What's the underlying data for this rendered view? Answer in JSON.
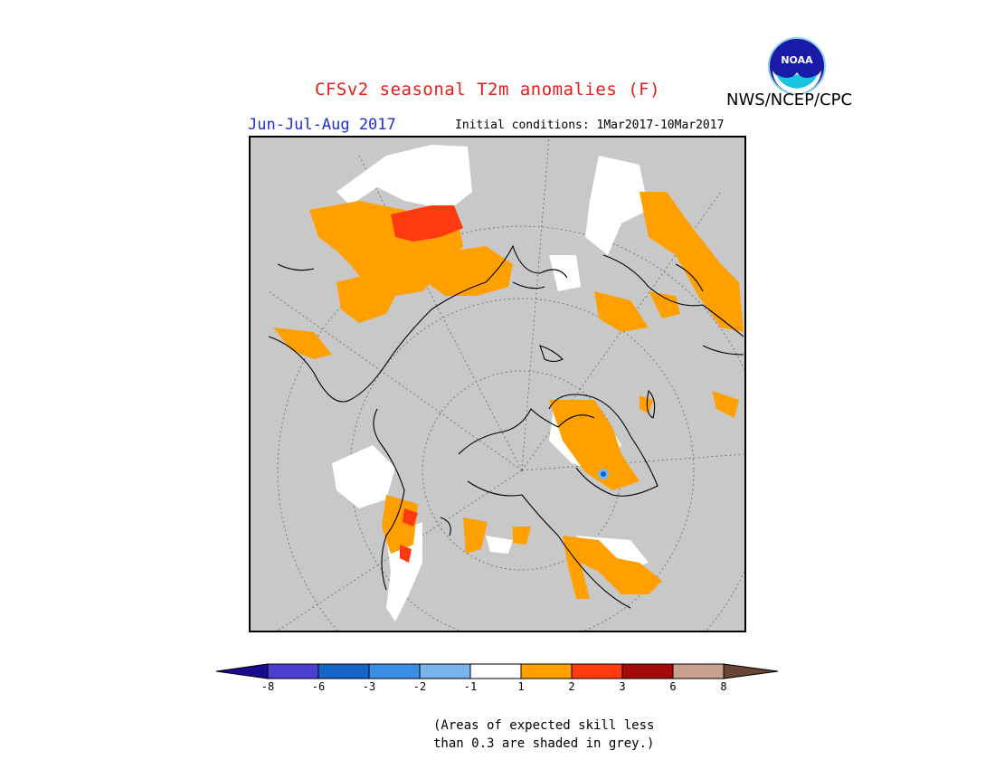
{
  "header": {
    "title": "CFSv2 seasonal T2m anomalies (F)",
    "agency": "NWS/NCEP/CPC",
    "season": "Jun-Jul-Aug 2017",
    "initial_conditions": "Initial conditions: 1Mar2017-10Mar2017",
    "logo_text": "NOAA"
  },
  "map": {
    "projection": "north polar stereographic",
    "background_grey_meaning": "skill < 0.3"
  },
  "colorbar": {
    "ticks": [
      "-8",
      "-6",
      "-3",
      "-2",
      "-1",
      "1",
      "2",
      "3",
      "6",
      "8"
    ],
    "colors": [
      "#1a0a8c",
      "#4b3fcf",
      "#1565c8",
      "#3b8ee6",
      "#78b4ee",
      "#ffffff",
      "#ffa000",
      "#ff3a10",
      "#a50a0a",
      "#c7a08e",
      "#6b4534"
    ]
  },
  "note": {
    "line1": "(Areas of expected skill less",
    "line2": "than 0.3 are shaded in grey.)"
  }
}
